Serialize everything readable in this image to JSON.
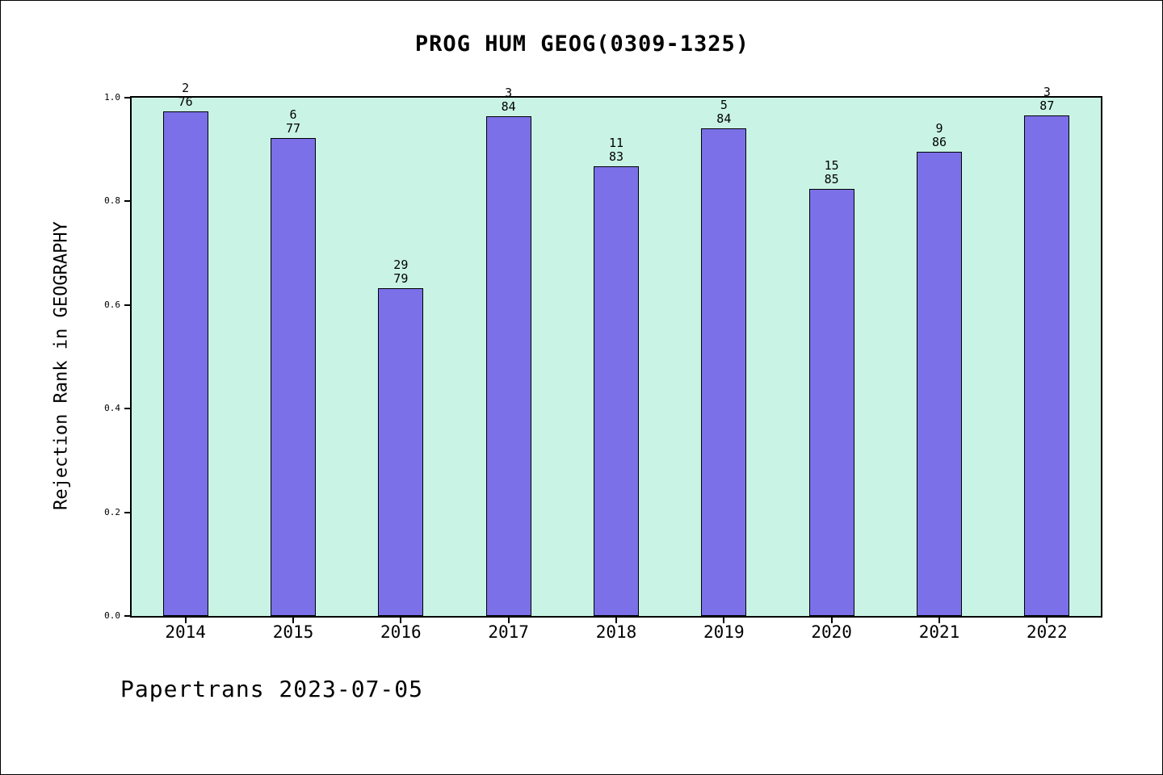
{
  "page": {
    "footer": "Papertrans 2023-07-05"
  },
  "chart_data": {
    "type": "bar",
    "title": "PROG HUM GEOG(0309-1325)",
    "xlabel": "",
    "ylabel": "Rejection Rank in GEOGRAPHY",
    "categories": [
      "2014",
      "2015",
      "2016",
      "2017",
      "2018",
      "2019",
      "2020",
      "2021",
      "2022"
    ],
    "values": [
      0.9737,
      0.9221,
      0.6329,
      0.9643,
      0.8675,
      0.9405,
      0.8235,
      0.8953,
      0.9655
    ],
    "bar_labels": [
      {
        "top": "2",
        "bottom": "76"
      },
      {
        "top": "6",
        "bottom": "77"
      },
      {
        "top": "29",
        "bottom": "79"
      },
      {
        "top": "3",
        "bottom": "84"
      },
      {
        "top": "11",
        "bottom": "83"
      },
      {
        "top": "5",
        "bottom": "84"
      },
      {
        "top": "15",
        "bottom": "85"
      },
      {
        "top": "9",
        "bottom": "86"
      },
      {
        "top": "3",
        "bottom": "87"
      }
    ],
    "ylim": [
      0.0,
      1.0
    ],
    "yticks": [
      "0.0",
      "0.2",
      "0.4",
      "0.6",
      "0.8",
      "1.0"
    ],
    "grid": false,
    "legend": null,
    "colors": {
      "bar": "#7b70e8",
      "bar_edge": "#000000",
      "plot_bg": "#c9f4e5",
      "page_bg": "#ffffff",
      "text": "#000000"
    }
  }
}
